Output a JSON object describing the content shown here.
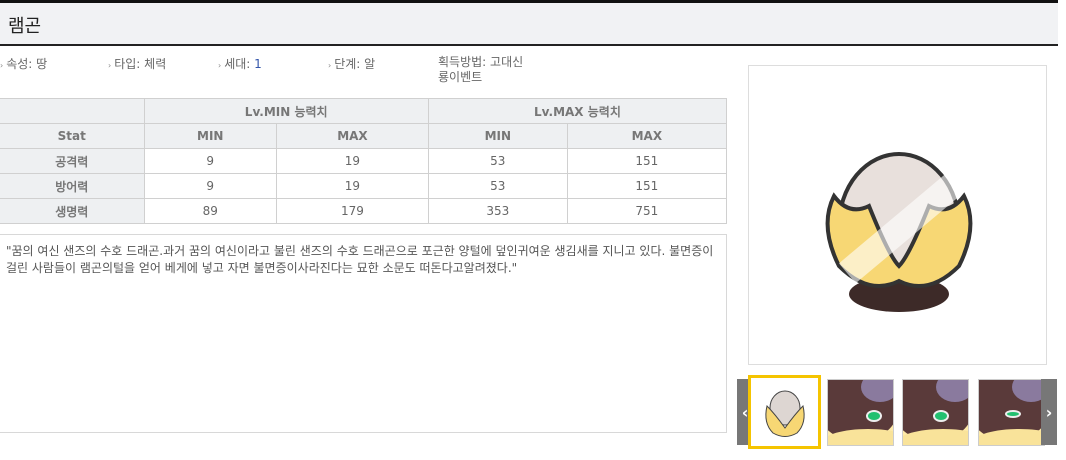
{
  "title": "램곤",
  "attributes": [
    {
      "label": "속성",
      "value": "땅"
    },
    {
      "label": "타입",
      "value": "체력"
    },
    {
      "label": "세대",
      "value": "1"
    },
    {
      "label": "단계",
      "value": "알"
    }
  ],
  "acquire": {
    "label": "획득방법",
    "value_line1": "고대신",
    "value_line2": "룡이벤트"
  },
  "table": {
    "group_headers": [
      "Lv.MIN 능력치",
      "Lv.MAX 능력치"
    ],
    "stat_header": "Stat",
    "sub_headers": [
      "MIN",
      "MAX",
      "MIN",
      "MAX"
    ],
    "rows": [
      {
        "stat": "공격력",
        "values": [
          "9",
          "19",
          "53",
          "151"
        ]
      },
      {
        "stat": "방어력",
        "values": [
          "9",
          "19",
          "53",
          "151"
        ]
      },
      {
        "stat": "생명력",
        "values": [
          "89",
          "179",
          "353",
          "751"
        ]
      }
    ]
  },
  "description": "\"꿈의 여신 샌즈의 수호 드래곤.과거 꿈의 여신이라고 불린 샌즈의 수호 드래곤으로 포근한 양털에 덮인귀여운 생김새를 지니고 있다. 불면증이 걸린 사람들이 램곤의털을 얻어 베게에 넣고 자면 불면증이사라진다는 묘한 소문도 떠돈다고알려졌다.\"",
  "gallery": {
    "prev": "‹",
    "next": "›",
    "selected_index": 0,
    "thumbnail_count": 4
  },
  "colors": {
    "selected_border": "#f5c400",
    "header_bg": "#f1f2f4",
    "nav_bg": "#777777"
  }
}
